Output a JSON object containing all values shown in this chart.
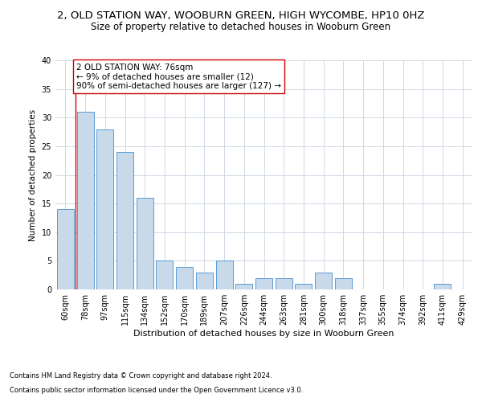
{
  "title": "2, OLD STATION WAY, WOOBURN GREEN, HIGH WYCOMBE, HP10 0HZ",
  "subtitle": "Size of property relative to detached houses in Wooburn Green",
  "xlabel": "Distribution of detached houses by size in Wooburn Green",
  "ylabel": "Number of detached properties",
  "categories": [
    "60sqm",
    "78sqm",
    "97sqm",
    "115sqm",
    "134sqm",
    "152sqm",
    "170sqm",
    "189sqm",
    "207sqm",
    "226sqm",
    "244sqm",
    "263sqm",
    "281sqm",
    "300sqm",
    "318sqm",
    "337sqm",
    "355sqm",
    "374sqm",
    "392sqm",
    "411sqm",
    "429sqm"
  ],
  "values": [
    14,
    31,
    28,
    24,
    16,
    5,
    4,
    3,
    5,
    1,
    2,
    2,
    1,
    3,
    2,
    0,
    0,
    0,
    0,
    1,
    0
  ],
  "bar_color": "#c8d9ea",
  "bar_edge_color": "#5b9bd5",
  "annotation_box_text": "2 OLD STATION WAY: 76sqm\n← 9% of detached houses are smaller (12)\n90% of semi-detached houses are larger (127) →",
  "annotation_line_color": "#cc0000",
  "annotation_box_color": "#ffffff",
  "annotation_box_edge_color": "#cc0000",
  "ylim": [
    0,
    40
  ],
  "yticks": [
    0,
    5,
    10,
    15,
    20,
    25,
    30,
    35,
    40
  ],
  "grid_color": "#d0d8e4",
  "background_color": "#ffffff",
  "footer_line1": "Contains HM Land Registry data © Crown copyright and database right 2024.",
  "footer_line2": "Contains public sector information licensed under the Open Government Licence v3.0.",
  "title_fontsize": 9.5,
  "subtitle_fontsize": 8.5,
  "xlabel_fontsize": 8,
  "ylabel_fontsize": 7.5,
  "tick_fontsize": 7,
  "annotation_fontsize": 7.5,
  "footer_fontsize": 6
}
